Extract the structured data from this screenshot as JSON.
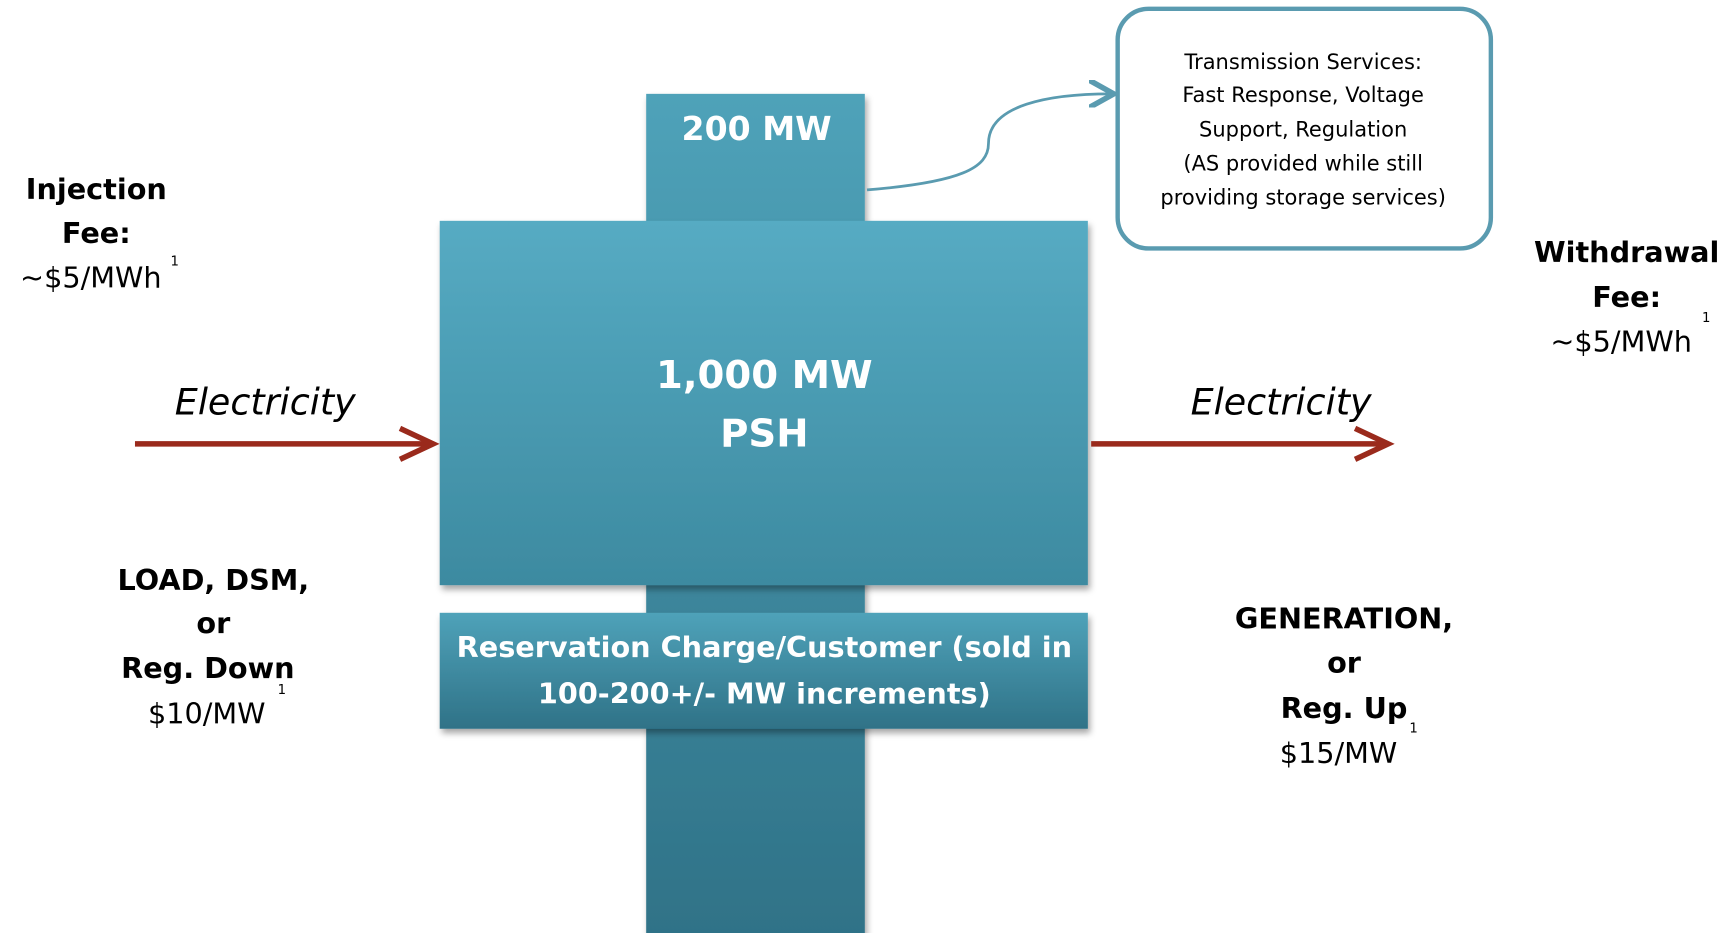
{
  "boxes": {
    "top": "200 MW",
    "main": [
      "1,000 MW",
      "PSH"
    ],
    "reservation": [
      "Reservation Charge/Customer (sold in",
      "100-200+/- MW increments)"
    ]
  },
  "callout": [
    "Transmission Services:",
    "Fast Response, Voltage",
    "Support, Regulation",
    "(AS provided while still",
    "providing storage services)"
  ],
  "left": {
    "fee_title": [
      "Injection",
      "Fee:"
    ],
    "fee": "~$5/MWh",
    "fee_footnote": "1",
    "flow": "Electricity",
    "source": [
      "LOAD, DSM,",
      "or",
      "Reg. Down"
    ],
    "price": "$10/MW",
    "price_footnote": "1"
  },
  "right": {
    "fee_title": [
      "Withdrawal",
      "Fee:"
    ],
    "fee": "~$5/MWh",
    "fee_footnote": "1",
    "flow": "Electricity",
    "source": [
      "GENERATION,",
      "or",
      "Reg. Up"
    ],
    "price": "$15/MW",
    "price_footnote": "1"
  }
}
